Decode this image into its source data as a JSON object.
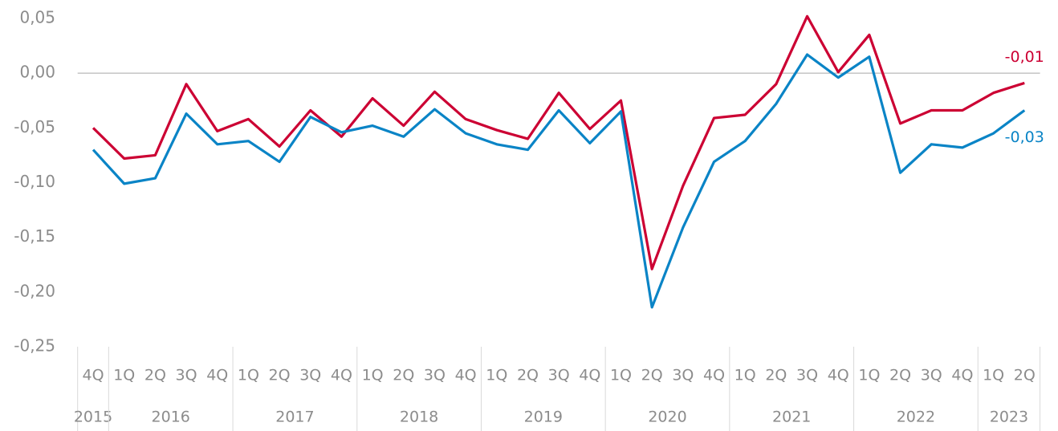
{
  "chart_data": {
    "type": "line",
    "categories": [
      "4Q",
      "1Q",
      "2Q",
      "3Q",
      "4Q",
      "1Q",
      "2Q",
      "3Q",
      "4Q",
      "1Q",
      "2Q",
      "3Q",
      "4Q",
      "1Q",
      "2Q",
      "3Q",
      "4Q",
      "1Q",
      "2Q",
      "3Q",
      "4Q",
      "1Q",
      "2Q",
      "3Q",
      "4Q",
      "1Q",
      "2Q",
      "3Q",
      "4Q",
      "1Q",
      "2Q"
    ],
    "x_groups": [
      {
        "label": "2015",
        "size": 1
      },
      {
        "label": "2016",
        "size": 4
      },
      {
        "label": "2017",
        "size": 4
      },
      {
        "label": "2018",
        "size": 4
      },
      {
        "label": "2019",
        "size": 4
      },
      {
        "label": "2020",
        "size": 4
      },
      {
        "label": "2021",
        "size": 4
      },
      {
        "label": "2022",
        "size": 4
      },
      {
        "label": "2023",
        "size": 2
      }
    ],
    "series": [
      {
        "color": "#cc0033",
        "values": [
          -0.05,
          -0.078,
          -0.075,
          -0.01,
          -0.053,
          -0.042,
          -0.067,
          -0.034,
          -0.058,
          -0.023,
          -0.048,
          -0.017,
          -0.042,
          -0.052,
          -0.06,
          -0.018,
          -0.051,
          -0.025,
          -0.179,
          -0.103,
          -0.041,
          -0.038,
          -0.01,
          0.052,
          0.001,
          0.035,
          -0.046,
          -0.034,
          -0.034,
          -0.018,
          -0.009
        ],
        "value_labels": [
          null,
          null,
          null,
          null,
          null,
          null,
          null,
          null,
          null,
          null,
          null,
          null,
          null,
          null,
          null,
          null,
          null,
          null,
          null,
          null,
          null,
          null,
          null,
          null,
          null,
          null,
          null,
          null,
          null,
          null,
          "-0,01"
        ]
      },
      {
        "color": "#0a84c6",
        "values": [
          -0.07,
          -0.101,
          -0.096,
          -0.037,
          -0.065,
          -0.062,
          -0.081,
          -0.04,
          -0.054,
          -0.048,
          -0.058,
          -0.033,
          -0.055,
          -0.065,
          -0.07,
          -0.034,
          -0.064,
          -0.035,
          -0.214,
          -0.141,
          -0.081,
          -0.062,
          -0.028,
          0.017,
          -0.004,
          0.015,
          -0.091,
          -0.065,
          -0.068,
          -0.055,
          -0.034
        ],
        "value_labels": [
          null,
          null,
          null,
          null,
          null,
          null,
          null,
          null,
          null,
          null,
          null,
          null,
          null,
          null,
          null,
          null,
          null,
          null,
          null,
          null,
          null,
          null,
          null,
          null,
          null,
          null,
          null,
          null,
          null,
          null,
          "-0,03"
        ]
      }
    ],
    "ylim": [
      -0.25,
      0.05
    ],
    "yticks": [
      {
        "value": 0.05,
        "label": "0,05"
      },
      {
        "value": 0,
        "label": "0,00"
      },
      {
        "value": -0.05,
        "label": "-0,05"
      },
      {
        "value": -0.1,
        "label": "-0,10"
      },
      {
        "value": -0.15,
        "label": "-0,15"
      },
      {
        "value": -0.2,
        "label": "-0,20"
      },
      {
        "value": -0.25,
        "label": "-0,25"
      }
    ],
    "grid": false
  }
}
